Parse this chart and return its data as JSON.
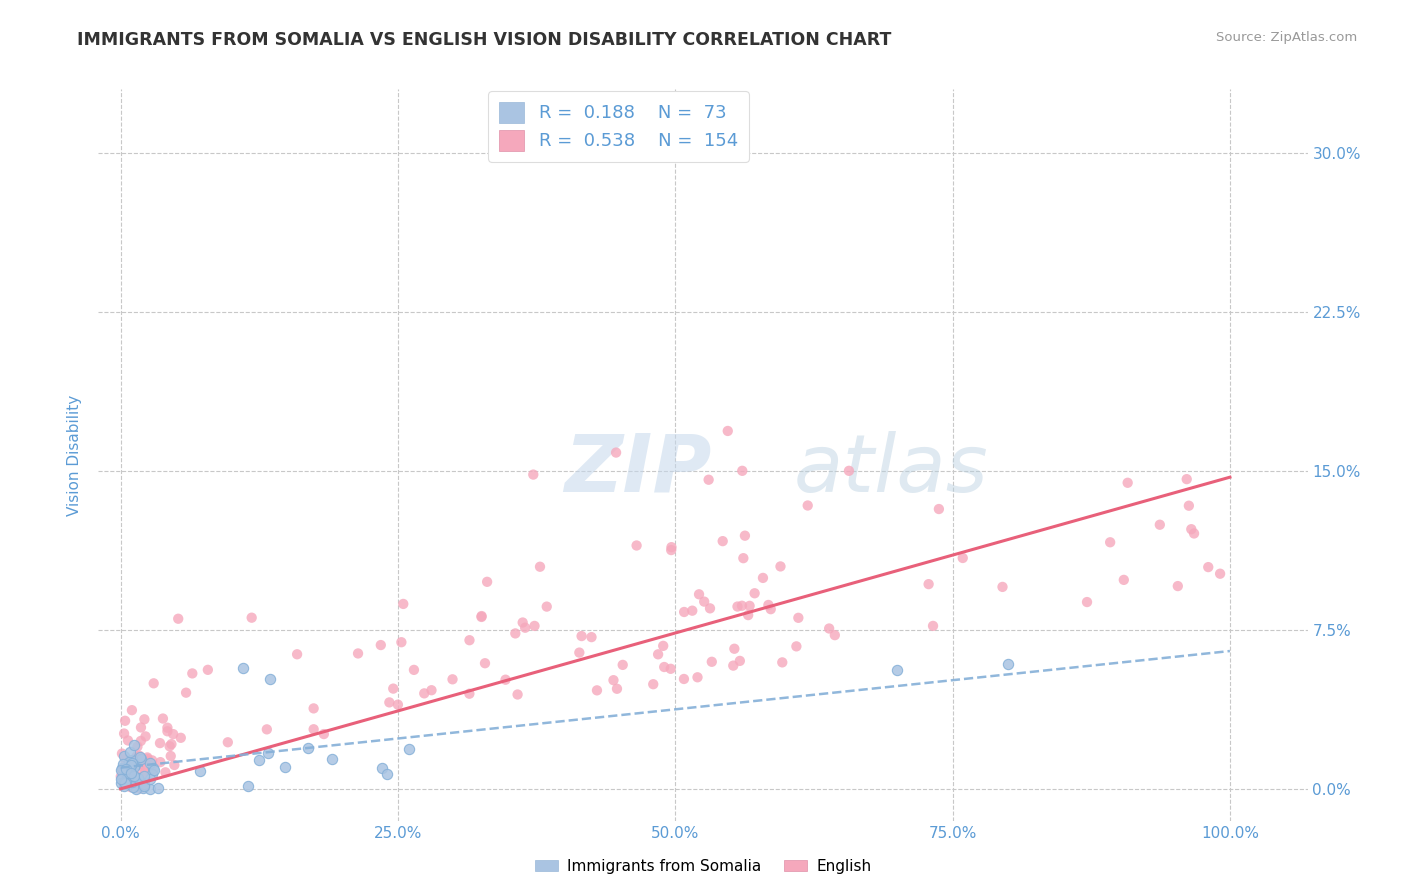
{
  "title": "IMMIGRANTS FROM SOMALIA VS ENGLISH VISION DISABILITY CORRELATION CHART",
  "source": "Source: ZipAtlas.com",
  "ylabel": "Vision Disability",
  "series1_label": "Immigrants from Somalia",
  "series2_label": "English",
  "R1": 0.188,
  "N1": 73,
  "R2": 0.538,
  "N2": 154,
  "color1": "#aac4e2",
  "color2": "#f5a8bc",
  "line1_color": "#85b0d8",
  "line2_color": "#e8607a",
  "ytick_labels": [
    "0.0%",
    "7.5%",
    "15.0%",
    "22.5%",
    "30.0%"
  ],
  "ytick_values": [
    0.0,
    7.5,
    15.0,
    22.5,
    30.0
  ],
  "xtick_labels": [
    "0.0%",
    "25.0%",
    "50.0%",
    "75.0%",
    "100.0%"
  ],
  "xtick_values": [
    0.0,
    25.0,
    50.0,
    75.0,
    100.0
  ],
  "xlim": [
    -2,
    107
  ],
  "ylim": [
    -1.5,
    33
  ],
  "watermark": "ZIPatlas",
  "title_color": "#333333",
  "axis_label_color": "#5b9bd5",
  "tick_label_color": "#5b9bd5",
  "background_color": "#ffffff",
  "grid_color": "#c8c8c8"
}
